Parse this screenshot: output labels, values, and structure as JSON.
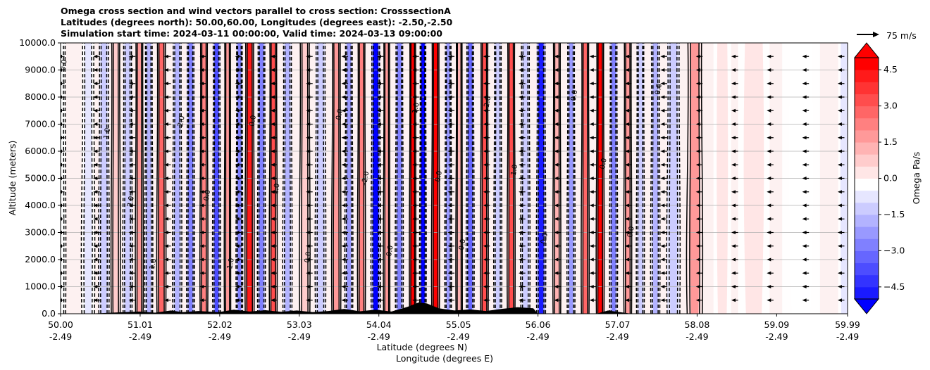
{
  "title_lines": [
    "Omega cross section and wind vectors parallel to cross section: CrosssectionA",
    "Latitudes (degrees north): 50.00,60.00, Longitudes (degrees east): -2.50,-2.50",
    "Simulation start time: 2024-03-11 00:00:00, Valid time: 2024-03-13 09:00:00"
  ],
  "wind_reference": {
    "label": "75 m/s"
  },
  "colors": {
    "negative": "#0000ff",
    "positive": "#ff0000",
    "neutral": "#ffffff",
    "terrain": "#000000",
    "contour": "#000000"
  },
  "chart_data": {
    "type": "heatmap",
    "variable": "Omega",
    "units": "Pa/s",
    "ylabel": "Altitude (meters)",
    "xlabel_lines": [
      "Latitude (degrees N)",
      "Longitude (degrees E)"
    ],
    "ylim": [
      0,
      10000
    ],
    "xlim": [
      50.0,
      59.99
    ],
    "y_ticks": [
      {
        "value": 0,
        "label": "0.0"
      },
      {
        "value": 1000,
        "label": "1000.0"
      },
      {
        "value": 2000,
        "label": "2000.0"
      },
      {
        "value": 3000,
        "label": "3000.0"
      },
      {
        "value": 4000,
        "label": "4000.0"
      },
      {
        "value": 5000,
        "label": "5000.0"
      },
      {
        "value": 6000,
        "label": "6000.0"
      },
      {
        "value": 7000,
        "label": "7000.0"
      },
      {
        "value": 8000,
        "label": "8000.0"
      },
      {
        "value": 9000,
        "label": "9000.0"
      },
      {
        "value": 10000,
        "label": "10000.0"
      }
    ],
    "x_ticks": [
      {
        "lat": 50.0,
        "lat_label": "50.00",
        "lon_label": "-2.49"
      },
      {
        "lat": 51.01,
        "lat_label": "51.01",
        "lon_label": "-2.49"
      },
      {
        "lat": 52.02,
        "lat_label": "52.02",
        "lon_label": "-2.49"
      },
      {
        "lat": 53.03,
        "lat_label": "53.03",
        "lon_label": "-2.49"
      },
      {
        "lat": 54.04,
        "lat_label": "54.04",
        "lon_label": "-2.49"
      },
      {
        "lat": 55.05,
        "lat_label": "55.05",
        "lon_label": "-2.49"
      },
      {
        "lat": 56.06,
        "lat_label": "56.06",
        "lon_label": "-2.49"
      },
      {
        "lat": 57.07,
        "lat_label": "57.07",
        "lon_label": "-2.49"
      },
      {
        "lat": 58.08,
        "lat_label": "58.08",
        "lon_label": "-2.49"
      },
      {
        "lat": 59.09,
        "lat_label": "59.09",
        "lon_label": "-2.49"
      },
      {
        "lat": 59.99,
        "lat_label": "59.99",
        "lon_label": "-2.49"
      }
    ],
    "grid": "horizontal",
    "colorbar": {
      "label": "Omega Pa/s",
      "range": [
        -5.0,
        5.0
      ],
      "extend": "both",
      "ticks": [
        {
          "value": 4.5,
          "label": "4.5"
        },
        {
          "value": 3.0,
          "label": "3.0"
        },
        {
          "value": 1.5,
          "label": "1.5"
        },
        {
          "value": 0.0,
          "label": "0.0"
        },
        {
          "value": -1.5,
          "label": "−1.5"
        },
        {
          "value": -3.0,
          "label": "−3.0"
        },
        {
          "value": -4.5,
          "label": "−4.5"
        }
      ]
    },
    "omega_columns": [
      {
        "lat": 50.0,
        "w": 0.08,
        "v": -0.2
      },
      {
        "lat": 50.35,
        "w": 0.1,
        "v": -0.5
      },
      {
        "lat": 50.55,
        "w": 0.08,
        "v": -0.8
      },
      {
        "lat": 50.7,
        "w": 0.07,
        "v": 1.0
      },
      {
        "lat": 50.85,
        "w": 0.07,
        "v": -1.2
      },
      {
        "lat": 51.0,
        "w": 0.06,
        "v": 2.0
      },
      {
        "lat": 51.12,
        "w": 0.06,
        "v": -1.6
      },
      {
        "lat": 51.28,
        "w": 0.07,
        "v": 3.0
      },
      {
        "lat": 51.48,
        "w": 0.07,
        "v": -1.5
      },
      {
        "lat": 51.65,
        "w": 0.06,
        "v": -2.5
      },
      {
        "lat": 51.82,
        "w": 0.06,
        "v": 2.5
      },
      {
        "lat": 51.98,
        "w": 0.06,
        "v": -3.5
      },
      {
        "lat": 52.12,
        "w": 0.05,
        "v": 2.0
      },
      {
        "lat": 52.27,
        "w": 0.05,
        "v": -2.5
      },
      {
        "lat": 52.4,
        "w": 0.07,
        "v": 4.5
      },
      {
        "lat": 52.55,
        "w": 0.06,
        "v": -2.5
      },
      {
        "lat": 52.7,
        "w": 0.06,
        "v": 3.5
      },
      {
        "lat": 52.88,
        "w": 0.07,
        "v": -1.5
      },
      {
        "lat": 53.1,
        "w": 0.08,
        "v": 0.8
      },
      {
        "lat": 53.3,
        "w": 0.08,
        "v": -1.2
      },
      {
        "lat": 53.5,
        "w": 0.07,
        "v": 1.8
      },
      {
        "lat": 53.66,
        "w": 0.06,
        "v": -2.0
      },
      {
        "lat": 53.82,
        "w": 0.06,
        "v": 2.5
      },
      {
        "lat": 54.0,
        "w": 0.07,
        "v": -5.0
      },
      {
        "lat": 54.14,
        "w": 0.05,
        "v": 1.8
      },
      {
        "lat": 54.3,
        "w": 0.06,
        "v": -2.5
      },
      {
        "lat": 54.47,
        "w": 0.05,
        "v": 5.0
      },
      {
        "lat": 54.6,
        "w": 0.05,
        "v": -5.0
      },
      {
        "lat": 54.76,
        "w": 0.06,
        "v": 5.0
      },
      {
        "lat": 54.92,
        "w": 0.05,
        "v": -2.0
      },
      {
        "lat": 55.06,
        "w": 0.05,
        "v": 1.5
      },
      {
        "lat": 55.2,
        "w": 0.06,
        "v": -3.0
      },
      {
        "lat": 55.38,
        "w": 0.06,
        "v": 3.5
      },
      {
        "lat": 55.55,
        "w": 0.06,
        "v": -1.2
      },
      {
        "lat": 55.72,
        "w": 0.06,
        "v": 3.5
      },
      {
        "lat": 55.9,
        "w": 0.07,
        "v": -0.8
      },
      {
        "lat": 56.1,
        "w": 0.07,
        "v": -4.5
      },
      {
        "lat": 56.3,
        "w": 0.06,
        "v": 1.5
      },
      {
        "lat": 56.48,
        "w": 0.06,
        "v": -2.0
      },
      {
        "lat": 56.66,
        "w": 0.06,
        "v": 3.0
      },
      {
        "lat": 56.85,
        "w": 0.06,
        "v": 5.0
      },
      {
        "lat": 57.02,
        "w": 0.06,
        "v": -2.5
      },
      {
        "lat": 57.2,
        "w": 0.06,
        "v": 2.0
      },
      {
        "lat": 57.36,
        "w": 0.06,
        "v": -1.0
      },
      {
        "lat": 57.55,
        "w": 0.07,
        "v": -1.5
      },
      {
        "lat": 57.78,
        "w": 0.1,
        "v": -0.8
      },
      {
        "lat": 58.05,
        "w": 0.12,
        "v": 2.0
      },
      {
        "lat": 58.4,
        "w": 0.14,
        "v": 0.4
      },
      {
        "lat": 58.8,
        "w": 0.25,
        "v": 0.3
      },
      {
        "lat": 59.4,
        "w": 0.3,
        "v": 0.2
      },
      {
        "lat": 59.95,
        "w": 0.1,
        "v": -0.3
      }
    ],
    "contour_labels": [
      "0.0",
      "1.0",
      "2.0",
      "−1.0",
      "−2.0",
      "0.0",
      "1.0",
      "0.0",
      "2.0",
      "0.0",
      "0.0",
      "−2.0",
      "0.0",
      "1.0",
      "0.0",
      "0.0",
      "2.0",
      "1.0",
      "0.0",
      "0.0",
      "0.0",
      "0.0",
      "0.0"
    ],
    "terrain": [
      {
        "lat": 50.0,
        "h": 0
      },
      {
        "lat": 50.3,
        "h": 0
      },
      {
        "lat": 50.5,
        "h": 20
      },
      {
        "lat": 50.8,
        "h": 60
      },
      {
        "lat": 51.0,
        "h": 80
      },
      {
        "lat": 51.2,
        "h": 40
      },
      {
        "lat": 51.4,
        "h": 120
      },
      {
        "lat": 51.55,
        "h": 60
      },
      {
        "lat": 51.75,
        "h": 100
      },
      {
        "lat": 52.0,
        "h": 60
      },
      {
        "lat": 52.2,
        "h": 150
      },
      {
        "lat": 52.4,
        "h": 80
      },
      {
        "lat": 52.6,
        "h": 130
      },
      {
        "lat": 52.8,
        "h": 70
      },
      {
        "lat": 53.0,
        "h": 120
      },
      {
        "lat": 53.2,
        "h": 60
      },
      {
        "lat": 53.4,
        "h": 100
      },
      {
        "lat": 53.6,
        "h": 180
      },
      {
        "lat": 53.8,
        "h": 90
      },
      {
        "lat": 54.0,
        "h": 150
      },
      {
        "lat": 54.2,
        "h": 80
      },
      {
        "lat": 54.4,
        "h": 250
      },
      {
        "lat": 54.55,
        "h": 420
      },
      {
        "lat": 54.65,
        "h": 380
      },
      {
        "lat": 54.8,
        "h": 200
      },
      {
        "lat": 55.0,
        "h": 120
      },
      {
        "lat": 55.2,
        "h": 160
      },
      {
        "lat": 55.4,
        "h": 100
      },
      {
        "lat": 55.6,
        "h": 180
      },
      {
        "lat": 55.8,
        "h": 240
      },
      {
        "lat": 56.0,
        "h": 200
      },
      {
        "lat": 56.06,
        "h": 0
      },
      {
        "lat": 56.8,
        "h": 0
      },
      {
        "lat": 56.95,
        "h": 120
      },
      {
        "lat": 57.1,
        "h": 60
      },
      {
        "lat": 57.25,
        "h": 0
      },
      {
        "lat": 59.99,
        "h": 0
      }
    ],
    "wind_vectors": {
      "direction": "toward-south",
      "levels_m": [
        500,
        1000,
        1500,
        2000,
        2500,
        3000,
        3500,
        4000,
        4500,
        5000,
        5500,
        6000,
        6500,
        7000,
        7500,
        8000,
        8500,
        9000,
        9500
      ],
      "columns_lat": [
        50.0,
        50.45,
        50.9,
        51.35,
        51.8,
        52.25,
        52.7,
        53.15,
        53.6,
        54.05,
        54.5,
        54.95,
        55.4,
        55.85,
        56.3,
        56.75,
        57.2,
        57.65,
        58.1,
        58.55,
        59.0,
        59.45,
        59.9
      ],
      "reference_speed": 75,
      "typical_speed": 10
    }
  }
}
